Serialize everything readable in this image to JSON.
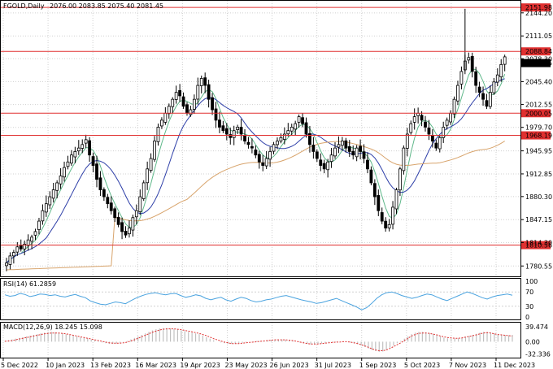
{
  "header": {
    "symbol": "FGOLD,Daily",
    "ohlc": "2076.00 2083.85 2075.40 2081.45"
  },
  "colors": {
    "candle": "#000000",
    "ma_fast": "#5fb88a",
    "ma_mid": "#2e3fa8",
    "ma_slow": "#d8a46c",
    "level_line": "#e03030",
    "level_label_bg": "#e03030",
    "rsi_line": "#4aa3df",
    "macd_hist": "#c0c0c0",
    "macd_signal": "#e03030",
    "grid": "#d0d0d0"
  },
  "chart_data": [
    {
      "type": "line",
      "name": "price-panel",
      "y_ticks": [
        "2144.20",
        "2111.05",
        "2078.30",
        "2045.40",
        "2012.55",
        "1979.70",
        "1945.95",
        "1912.85",
        "1880.30",
        "1847.15",
        "1814.30",
        "1780.55"
      ],
      "ylim": [
        1768,
        2158
      ],
      "levels": [
        {
          "label": "2151.98",
          "value": 2151.98
        },
        {
          "label": "2088.84",
          "value": 2088.84
        },
        {
          "label": "2000.05",
          "value": 2000.05
        },
        {
          "label": "1968.19",
          "value": 1968.19
        },
        {
          "label": "1810.56",
          "value": 1810.56
        }
      ],
      "last_price": {
        "label": "2081.45",
        "value": 2081.45
      },
      "x_labels": [
        "5 Dec 2022",
        "10 Jan 2023",
        "13 Feb 2023",
        "16 Mar 2023",
        "19 Apr 2023",
        "23 May 2023",
        "26 Jun 2023",
        "31 Jul 2023",
        "1 Sep 2023",
        "5 Oct 2023",
        "7 Nov 2023",
        "11 Dec 2023"
      ],
      "closes": [
        1785,
        1795,
        1800,
        1808,
        1805,
        1812,
        1818,
        1822,
        1830,
        1845,
        1860,
        1870,
        1880,
        1890,
        1900,
        1910,
        1922,
        1930,
        1940,
        1945,
        1950,
        1955,
        1962,
        1940,
        1925,
        1905,
        1890,
        1880,
        1870,
        1860,
        1850,
        1840,
        1830,
        1825,
        1835,
        1850,
        1860,
        1880,
        1900,
        1920,
        1935,
        1960,
        1980,
        1990,
        2000,
        2010,
        2020,
        2030,
        2025,
        2010,
        2000,
        2005,
        2020,
        2040,
        2050,
        2040,
        2020,
        2005,
        1990,
        1980,
        1975,
        1970,
        1965,
        1975,
        1980,
        1970,
        1960,
        1955,
        1950,
        1940,
        1930,
        1925,
        1935,
        1945,
        1955,
        1960,
        1965,
        1970,
        1975,
        1980,
        1985,
        1995,
        1985,
        1970,
        1955,
        1945,
        1935,
        1925,
        1920,
        1930,
        1940,
        1950,
        1955,
        1960,
        1950,
        1945,
        1940,
        1950,
        1945,
        1935,
        1920,
        1900,
        1880,
        1860,
        1845,
        1835,
        1840,
        1865,
        1890,
        1920,
        1950,
        1970,
        1985,
        1995,
        2000,
        1990,
        1980,
        1970,
        1960,
        1950,
        1965,
        1980,
        1990,
        2000,
        2020,
        2040,
        2060,
        2075,
        2080,
        2060,
        2040,
        2030,
        2020,
        2010,
        2030,
        2045,
        2055,
        2070,
        2081
      ]
    },
    {
      "type": "line",
      "name": "rsi-panel",
      "title": "RSI(14) 61.2859",
      "y_ticks": [
        "100",
        "70",
        "30",
        "0"
      ],
      "ylim": [
        0,
        100
      ],
      "values": [
        62,
        58,
        60,
        66,
        63,
        57,
        60,
        64,
        63,
        60,
        62,
        58,
        56,
        60,
        63,
        58,
        54,
        45,
        40,
        36,
        34,
        38,
        42,
        40,
        37,
        45,
        52,
        58,
        63,
        66,
        68,
        64,
        62,
        65,
        66,
        60,
        55,
        58,
        62,
        59,
        52,
        48,
        52,
        55,
        48,
        44,
        50,
        55,
        52,
        46,
        42,
        44,
        48,
        50,
        54,
        58,
        60,
        56,
        52,
        48,
        45,
        42,
        38,
        40,
        44,
        48,
        52,
        46,
        40,
        34,
        28,
        20,
        26,
        38,
        52,
        62,
        68,
        70,
        66,
        60,
        56,
        52,
        55,
        60,
        64,
        62,
        56,
        50,
        46,
        52,
        58,
        64,
        70,
        66,
        60,
        54,
        50,
        56,
        60,
        62,
        64,
        61
      ]
    },
    {
      "type": "bar",
      "name": "macd-panel",
      "title": "MACD(12,26,9) 18.245 15.098",
      "y_ticks": [
        "39.474",
        "0.00",
        "-32.336"
      ],
      "ylim": [
        -38,
        44
      ],
      "histogram": [
        2,
        4,
        6,
        8,
        10,
        12,
        14,
        16,
        18,
        20,
        22,
        24,
        26,
        26,
        25,
        24,
        22,
        20,
        18,
        16,
        14,
        12,
        10,
        8,
        6,
        4,
        2,
        -2,
        -4,
        -6,
        -6,
        -5,
        -3,
        -1,
        2,
        6,
        10,
        14,
        18,
        22,
        26,
        30,
        33,
        35,
        36,
        36,
        35,
        34,
        32,
        30,
        28,
        26,
        24,
        22,
        20,
        16,
        12,
        8,
        4,
        0,
        -2,
        -4,
        -6,
        -6,
        -5,
        -4,
        -3,
        -2,
        0,
        1,
        2,
        2,
        3,
        4,
        5,
        6,
        6,
        6,
        5,
        4,
        2,
        0,
        -2,
        -4,
        -6,
        -7,
        -7,
        -6,
        -5,
        -4,
        -3,
        -2,
        -1,
        0,
        1,
        0,
        -2,
        -4,
        -6,
        -10,
        -14,
        -18,
        -22,
        -25,
        -27,
        -26,
        -22,
        -16,
        -10,
        -4,
        2,
        8,
        14,
        20,
        24,
        26,
        26,
        25,
        23,
        20,
        17,
        14,
        11,
        9,
        8,
        8,
        9,
        11,
        13,
        15,
        18,
        21,
        24,
        26,
        26,
        24,
        22,
        20,
        19,
        18,
        17,
        18
      ],
      "signal": [
        1,
        2,
        3,
        5,
        7,
        9,
        11,
        13,
        15,
        17,
        19,
        21,
        22,
        23,
        23,
        23,
        22,
        21,
        19,
        17,
        15,
        13,
        11,
        9,
        7,
        5,
        3,
        1,
        -1,
        -3,
        -4,
        -4,
        -4,
        -3,
        -1,
        2,
        5,
        9,
        13,
        17,
        21,
        25,
        28,
        31,
        33,
        34,
        34,
        34,
        33,
        32,
        30,
        28,
        26,
        24,
        22,
        19,
        16,
        12,
        8,
        5,
        2,
        -1,
        -3,
        -5,
        -5,
        -5,
        -4,
        -3,
        -2,
        -1,
        0,
        1,
        2,
        3,
        4,
        5,
        5,
        5,
        5,
        4,
        3,
        1,
        -1,
        -3,
        -5,
        -6,
        -6,
        -6,
        -5,
        -4,
        -3,
        -2,
        -1,
        -1,
        0,
        0,
        -1,
        -3,
        -5,
        -8,
        -11,
        -15,
        -19,
        -22,
        -24,
        -24,
        -22,
        -18,
        -13,
        -8,
        -3,
        3,
        9,
        15,
        19,
        22,
        23,
        23,
        22,
        20,
        18,
        15,
        13,
        11,
        10,
        9,
        9,
        10,
        12,
        14,
        16,
        18,
        21,
        23,
        24,
        23,
        21,
        19,
        18,
        17,
        16,
        15
      ]
    }
  ]
}
